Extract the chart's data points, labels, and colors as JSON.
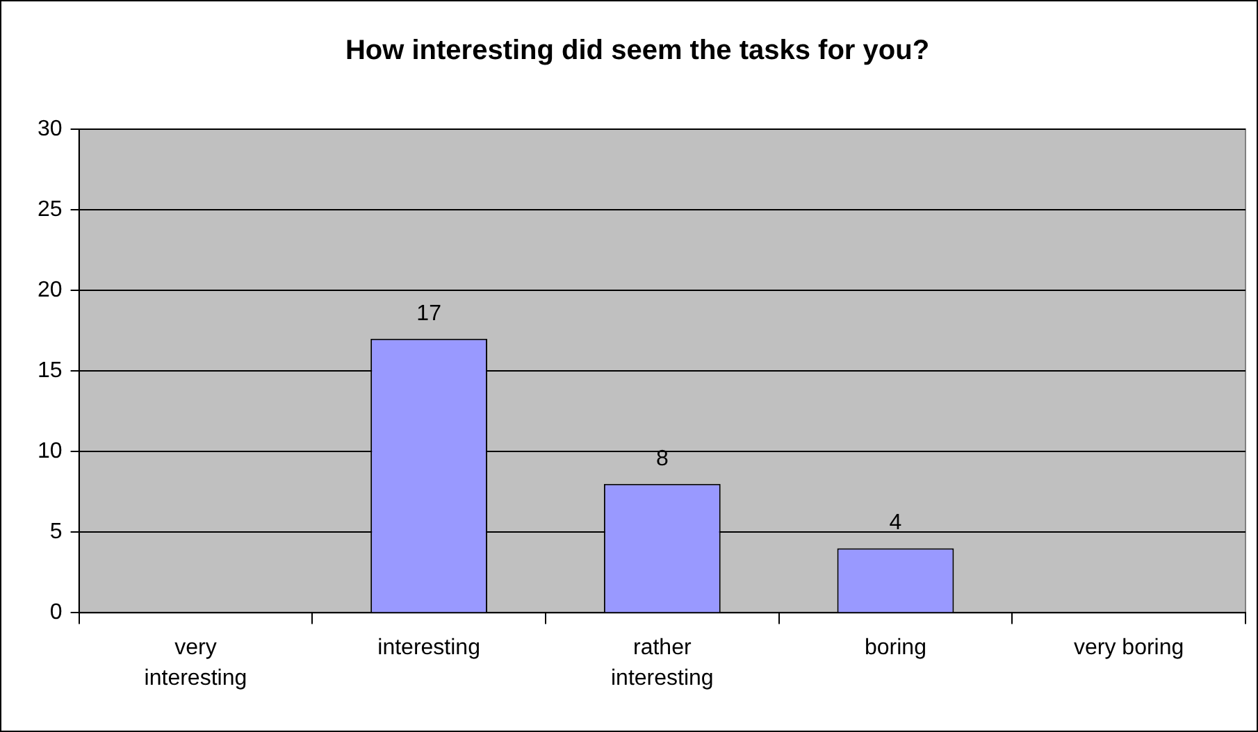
{
  "chart_data": {
    "type": "bar",
    "title": "How interesting did seem the tasks for you?",
    "categories": [
      "very interesting",
      "interesting",
      "rather interesting",
      "boring",
      "very boring"
    ],
    "values": [
      0,
      17,
      8,
      4,
      0
    ],
    "color": "#9999ff",
    "value_labels": [
      null,
      "17",
      "8",
      "4",
      null
    ],
    "ylim": [
      0,
      30
    ],
    "yticks": [
      0,
      5,
      10,
      15,
      20,
      25,
      30
    ],
    "grid": "y"
  }
}
